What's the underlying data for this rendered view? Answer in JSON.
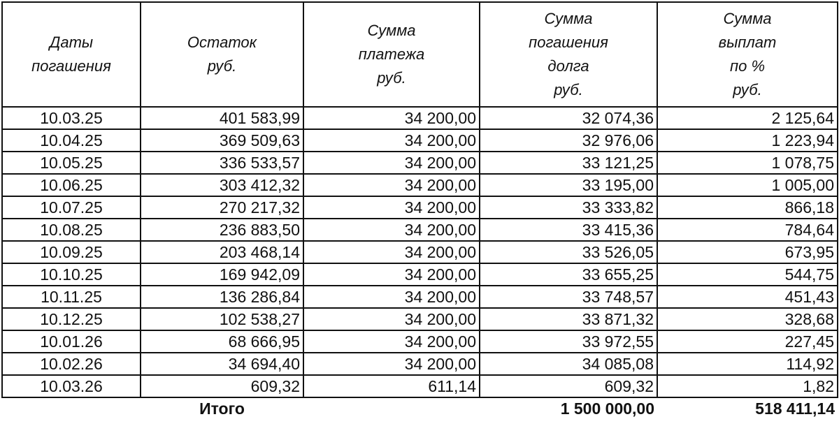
{
  "headers": {
    "date": [
      "Даты",
      "погашения"
    ],
    "balance": [
      "Остаток",
      "руб."
    ],
    "payment": [
      "Сумма",
      "платежа",
      "руб."
    ],
    "principal": [
      "Сумма",
      "погашения",
      "долга",
      "руб."
    ],
    "interest": [
      "Сумма",
      "выплат",
      "по %",
      "руб."
    ]
  },
  "rows": [
    {
      "date": "10.03.25",
      "balance": "401 583,99",
      "payment": "34 200,00",
      "principal": "32 074,36",
      "interest": "2 125,64"
    },
    {
      "date": "10.04.25",
      "balance": "369 509,63",
      "payment": "34 200,00",
      "principal": "32 976,06",
      "interest": "1 223,94"
    },
    {
      "date": "10.05.25",
      "balance": "336 533,57",
      "payment": "34 200,00",
      "principal": "33 121,25",
      "interest": "1 078,75"
    },
    {
      "date": "10.06.25",
      "balance": "303 412,32",
      "payment": "34 200,00",
      "principal": "33 195,00",
      "interest": "1 005,00"
    },
    {
      "date": "10.07.25",
      "balance": "270 217,32",
      "payment": "34 200,00",
      "principal": "33 333,82",
      "interest": "866,18"
    },
    {
      "date": "10.08.25",
      "balance": "236 883,50",
      "payment": "34 200,00",
      "principal": "33 415,36",
      "interest": "784,64"
    },
    {
      "date": "10.09.25",
      "balance": "203 468,14",
      "payment": "34 200,00",
      "principal": "33 526,05",
      "interest": "673,95"
    },
    {
      "date": "10.10.25",
      "balance": "169 942,09",
      "payment": "34 200,00",
      "principal": "33 655,25",
      "interest": "544,75"
    },
    {
      "date": "10.11.25",
      "balance": "136 286,84",
      "payment": "34 200,00",
      "principal": "33 748,57",
      "interest": "451,43"
    },
    {
      "date": "10.12.25",
      "balance": "102 538,27",
      "payment": "34 200,00",
      "principal": "33 871,32",
      "interest": "328,68"
    },
    {
      "date": "10.01.26",
      "balance": "68 666,95",
      "payment": "34 200,00",
      "principal": "33 972,55",
      "interest": "227,45"
    },
    {
      "date": "10.02.26",
      "balance": "34 694,40",
      "payment": "34 200,00",
      "principal": "34 085,08",
      "interest": "114,92"
    },
    {
      "date": "10.03.26",
      "balance": "609,32",
      "payment": "611,14",
      "principal": "609,32",
      "interest": "1,82"
    }
  ],
  "totals": {
    "label": "Итого",
    "principal": "1 500 000,00",
    "interest": "518 411,14"
  }
}
